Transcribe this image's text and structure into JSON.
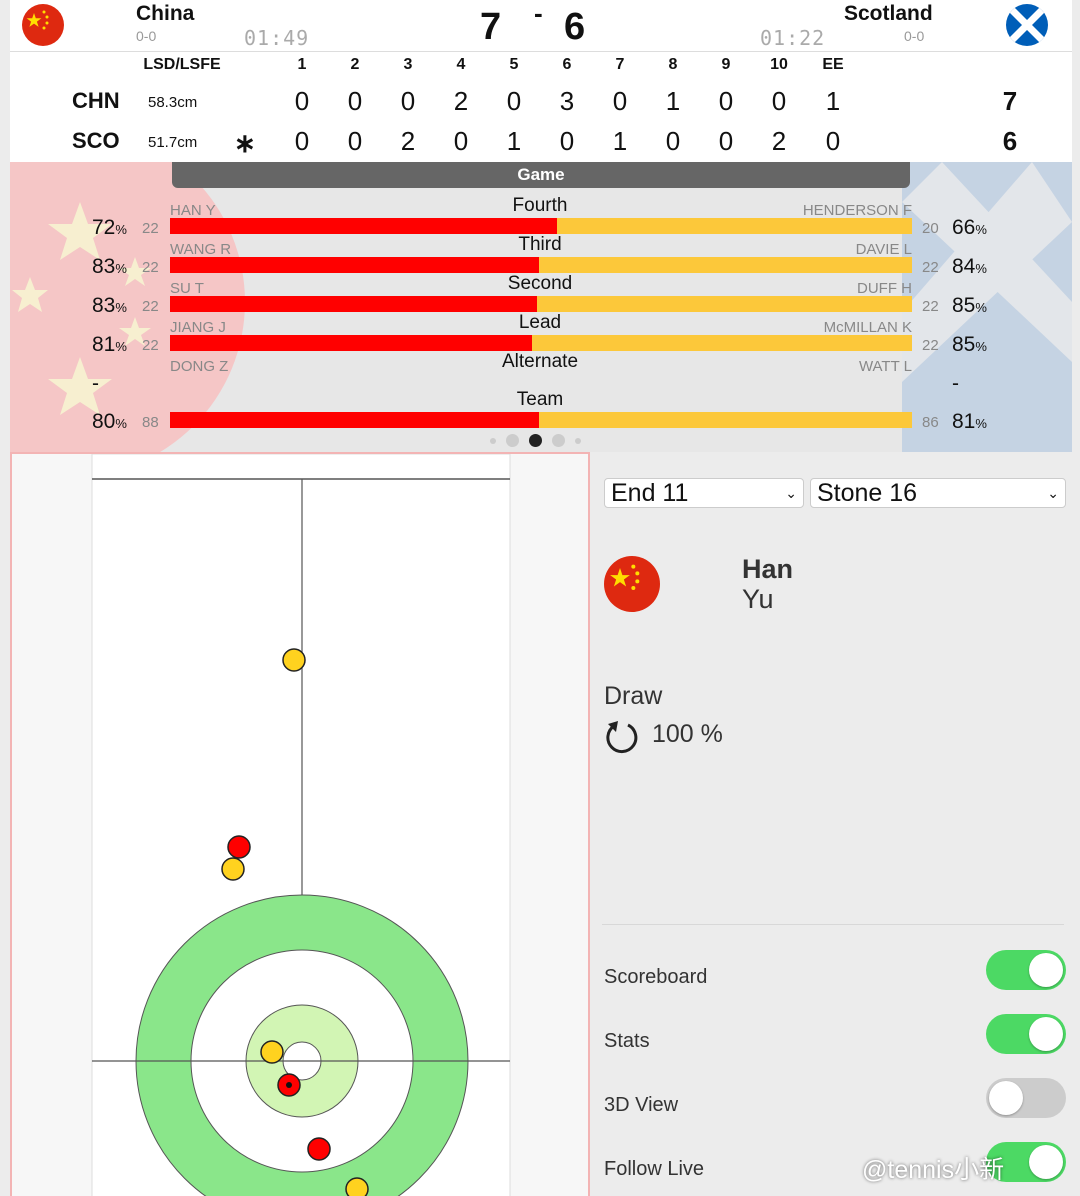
{
  "header": {
    "home": {
      "name": "China",
      "record": "0-0",
      "clock": "01:49",
      "score": "7"
    },
    "away": {
      "name": "Scotland",
      "record": "0-0",
      "clock": "01:22",
      "score": "6"
    },
    "separator": "-"
  },
  "linescore": {
    "lsd_header": "LSD/LSFE",
    "ends": [
      "1",
      "2",
      "3",
      "4",
      "5",
      "6",
      "7",
      "8",
      "9",
      "10",
      "EE"
    ],
    "hammer_symbol": "∗",
    "teams": [
      {
        "abbr": "CHN",
        "lsd": "58.3cm",
        "scores": [
          "0",
          "0",
          "0",
          "2",
          "0",
          "3",
          "0",
          "1",
          "0",
          "0",
          "1"
        ],
        "total": "7"
      },
      {
        "abbr": "SCO",
        "lsd": "51.7cm",
        "scores": [
          "0",
          "0",
          "2",
          "0",
          "1",
          "0",
          "1",
          "0",
          "0",
          "2",
          "0"
        ],
        "total": "6"
      }
    ]
  },
  "stats": {
    "tab_label": "Game",
    "rows": [
      {
        "position": "Fourth",
        "left_name": "HAN Y",
        "left_shots": "22",
        "left_pct": "72",
        "right_name": "HENDERSON F",
        "right_shots": "20",
        "right_pct": "66"
      },
      {
        "position": "Third",
        "left_name": "WANG R",
        "left_shots": "22",
        "left_pct": "83",
        "right_name": "DAVIE L",
        "right_shots": "22",
        "right_pct": "84"
      },
      {
        "position": "Second",
        "left_name": "SU T",
        "left_shots": "22",
        "left_pct": "83",
        "right_name": "DUFF H",
        "right_shots": "22",
        "right_pct": "85"
      },
      {
        "position": "Lead",
        "left_name": "JIANG J",
        "left_shots": "22",
        "left_pct": "81",
        "right_name": "McMILLAN K",
        "right_shots": "22",
        "right_pct": "85"
      },
      {
        "position": "Alternate",
        "left_name": "DONG Z",
        "left_shots": "",
        "left_pct": "-",
        "right_name": "WATT L",
        "right_shots": "",
        "right_pct": "-"
      },
      {
        "position": "Team",
        "left_name": "",
        "left_shots": "88",
        "left_pct": "80",
        "right_name": "",
        "right_shots": "86",
        "right_pct": "81"
      }
    ],
    "pct_sign": "%"
  },
  "controls": {
    "end_select": "End 11",
    "stone_select": "Stone 16",
    "player_first": "Han",
    "player_last": "Yu",
    "shot_type": "Draw",
    "shot_rate": "100 %",
    "toggles": [
      {
        "label": "Scoreboard",
        "on": true
      },
      {
        "label": "Stats",
        "on": true
      },
      {
        "label": "3D View",
        "on": false
      },
      {
        "label": "Follow Live",
        "on": true
      }
    ]
  },
  "sheet": {
    "stones": [
      {
        "team": "yellow"
      },
      {
        "team": "red"
      },
      {
        "team": "yellow"
      },
      {
        "team": "yellow"
      },
      {
        "team": "red",
        "last": true
      },
      {
        "team": "red"
      },
      {
        "team": "yellow"
      }
    ],
    "colors": {
      "red": "#ff0000",
      "yellow": "#ffd21f",
      "ring_outer": "#8ae68a",
      "ring_button": "#d2f5b4"
    }
  },
  "colors": {
    "china_red": "#de2910",
    "scotland_blue": "#005eb8",
    "bar_red": "#ff0000",
    "bar_yellow": "#fcc83a",
    "toggle_on": "#4cd964"
  },
  "watermark": "@tennis小新",
  "icons": [
    "china-flag-icon",
    "scotland-flag-icon",
    "rotation-icon",
    "chevron-down-icon"
  ]
}
